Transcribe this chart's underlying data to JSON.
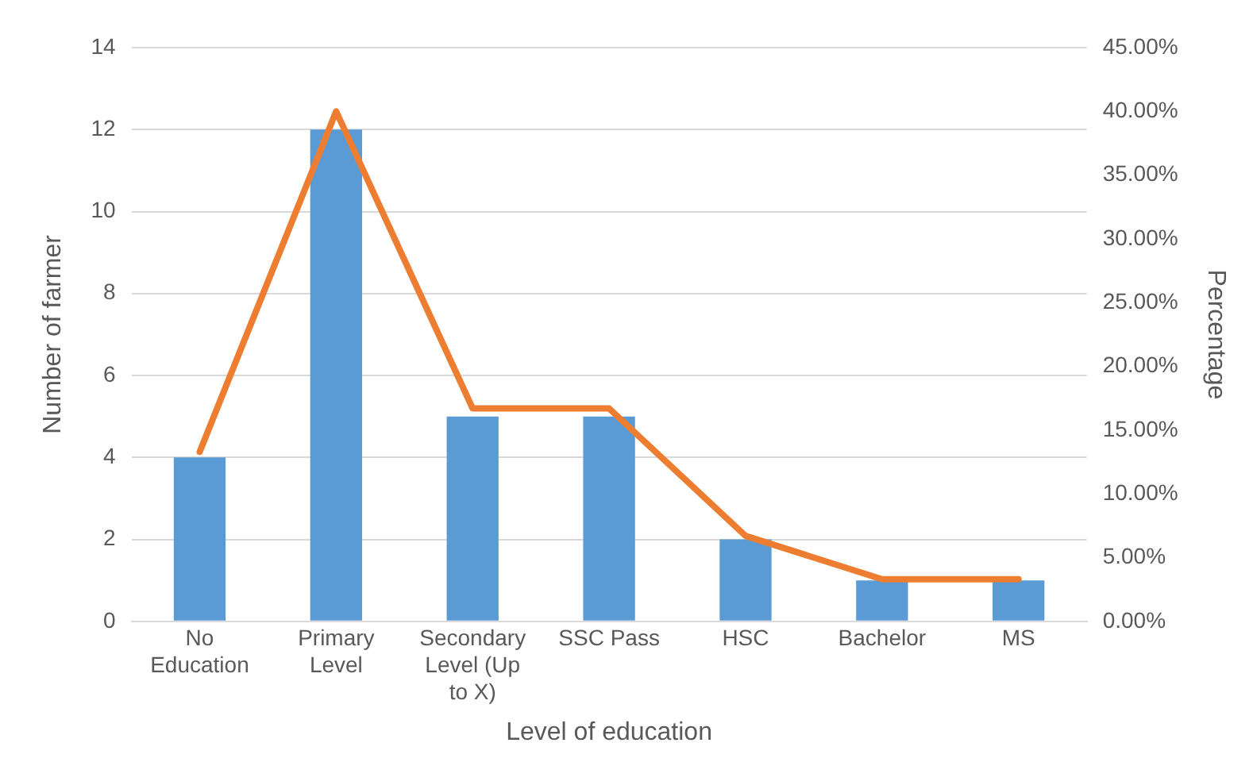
{
  "chart_data": {
    "type": "bar",
    "xlabel": "Level of education",
    "ylabel": "Number of farmer",
    "y2label": "Percentage",
    "categories": [
      "No Education",
      "Primary Level",
      "Secondary Level (Up to X)",
      "SSC Pass",
      "HSC",
      "Bachelor",
      "MS"
    ],
    "series": [
      {
        "color": "#5b9bd5",
        "values": [
          4,
          12,
          5,
          5,
          2,
          1,
          1
        ]
      },
      {
        "type": "line",
        "axis": "y2",
        "color": "#ed7d31",
        "values": [
          13.3,
          40,
          16.7,
          16.7,
          6.7,
          3.3,
          3.3
        ],
        "marker": "none",
        "line_style": "solid"
      }
    ],
    "ylim": [
      0,
      14
    ],
    "yticks": [
      0,
      2,
      4,
      6,
      8,
      10,
      12,
      14
    ],
    "y2lim": [
      0,
      45
    ],
    "y2ticks": [
      {
        "value": 0,
        "label": "0.00%"
      },
      {
        "value": 5,
        "label": "5.00%"
      },
      {
        "value": 10,
        "label": "10.00%"
      },
      {
        "value": 15,
        "label": "15.00%"
      },
      {
        "value": 20,
        "label": "20.00%"
      },
      {
        "value": 25,
        "label": "25.00%"
      },
      {
        "value": 30,
        "label": "30.00%"
      },
      {
        "value": 35,
        "label": "35.00%"
      },
      {
        "value": 40,
        "label": "40.00%"
      },
      {
        "value": 45,
        "label": "45.00%"
      }
    ],
    "grid": "y",
    "legend": false
  }
}
